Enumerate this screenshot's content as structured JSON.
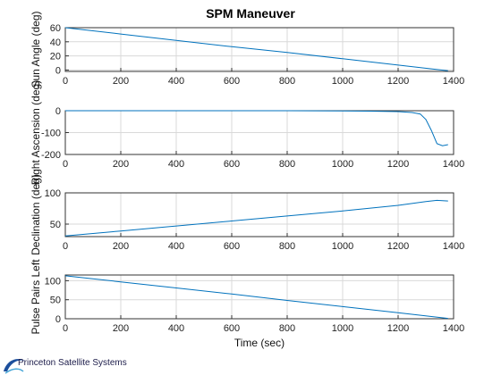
{
  "brand": {
    "text": "Princeton Satellite Systems"
  },
  "chart_data": {
    "type": "line",
    "title": "SPM Maneuver",
    "xlabel": "Time (sec)",
    "colors": {
      "series": "#0072bd"
    },
    "grid": true,
    "subplots": [
      {
        "ylabel": "Sun Angle (deg)",
        "xlim": [
          0,
          1400
        ],
        "ylim": [
          -2,
          60
        ],
        "xticks": [
          0,
          200,
          400,
          600,
          800,
          1000,
          1200,
          1400
        ],
        "yticks": [
          0,
          20,
          40,
          60
        ],
        "x": [
          0,
          200,
          400,
          600,
          800,
          1000,
          1200,
          1380
        ],
        "y": [
          60,
          51,
          42,
          33,
          25,
          16,
          7,
          -1
        ]
      },
      {
        "ylabel": "Right Ascension (deg)",
        "xlim": [
          0,
          1400
        ],
        "ylim": [
          -200,
          0
        ],
        "xticks": [
          0,
          200,
          400,
          600,
          800,
          1000,
          1200,
          1400
        ],
        "yticks": [
          -200,
          -100,
          0
        ],
        "x": [
          0,
          200,
          400,
          600,
          800,
          1000,
          1100,
          1200,
          1250,
          1280,
          1300,
          1320,
          1340,
          1360,
          1380
        ],
        "y": [
          0,
          0,
          0,
          0,
          0,
          -1,
          -2,
          -4,
          -8,
          -15,
          -40,
          -90,
          -150,
          -160,
          -155
        ]
      },
      {
        "ylabel": "Declination (deg)",
        "xlim": [
          0,
          1400
        ],
        "ylim": [
          30,
          100
        ],
        "xticks": [
          0,
          200,
          400,
          600,
          800,
          1000,
          1200,
          1400
        ],
        "yticks": [
          50,
          100
        ],
        "x": [
          0,
          200,
          400,
          600,
          800,
          1000,
          1200,
          1300,
          1340,
          1380
        ],
        "y": [
          31,
          39,
          47,
          55,
          63,
          71,
          80,
          86,
          88,
          87
        ]
      },
      {
        "ylabel": "Pulse Pairs Left",
        "xlim": [
          0,
          1400
        ],
        "ylim": [
          0,
          115
        ],
        "xticks": [
          0,
          200,
          400,
          600,
          800,
          1000,
          1200,
          1400
        ],
        "yticks": [
          0,
          50,
          100
        ],
        "x": [
          0,
          200,
          400,
          600,
          800,
          1000,
          1200,
          1380
        ],
        "y": [
          113,
          97,
          81,
          65,
          48,
          32,
          16,
          1
        ]
      }
    ]
  }
}
